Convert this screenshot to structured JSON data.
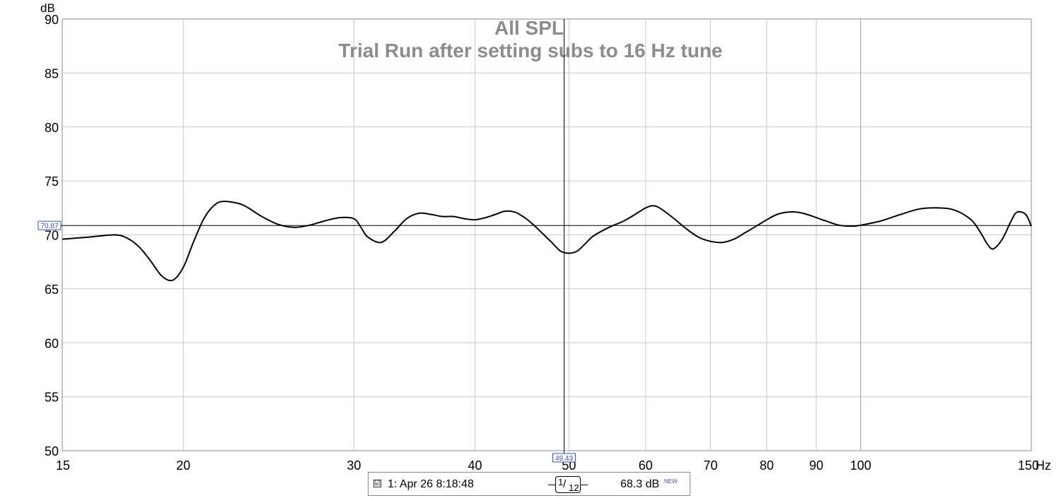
{
  "chart_data": {
    "type": "line",
    "title": "All SPL",
    "subtitle": "Trial Run after setting subs to 16 Hz tune",
    "ylabel": "dB",
    "xunit": "Hz",
    "xscale": "log",
    "xlim": [
      15,
      150
    ],
    "ylim": [
      50,
      90
    ],
    "y_ticks": [
      50,
      55,
      60,
      65,
      70,
      75,
      80,
      85,
      90
    ],
    "x_ticks": [
      15,
      20,
      30,
      40,
      50,
      60,
      70,
      80,
      90,
      100,
      150
    ],
    "x_tick_labels": [
      "15",
      "20",
      "30",
      "40",
      "50",
      "60",
      "70",
      "80",
      "90",
      "100",
      "150"
    ],
    "grid": true,
    "line_color": "#000000",
    "grid_color": "#c8c8c8",
    "marker_color": "#3a4fd0",
    "cursor": {
      "x": 49.43,
      "y": 70.87,
      "x_label": "49.43",
      "y_label": "70.87"
    },
    "series": [
      {
        "x": [
          15,
          16,
          17,
          17.5,
          18,
          18.5,
          19,
          19.5,
          20,
          20.5,
          21,
          21.5,
          22,
          23,
          24,
          25,
          26,
          27,
          28,
          29,
          30,
          30.5,
          31,
          32,
          33,
          34,
          35,
          36,
          37,
          38,
          39,
          40,
          41,
          42,
          43,
          44,
          45,
          46,
          47,
          48,
          49,
          50,
          51,
          52,
          53,
          55,
          57,
          59,
          60,
          61,
          62,
          64,
          66,
          68,
          70,
          72,
          74,
          76,
          78,
          80,
          82,
          84,
          86,
          88,
          90,
          92,
          95,
          98,
          100,
          105,
          110,
          115,
          120,
          125,
          130,
          133,
          135,
          137,
          140,
          143,
          145,
          148,
          150
        ],
        "values": [
          69.6,
          69.8,
          70.0,
          69.7,
          68.9,
          67.6,
          66.2,
          65.8,
          67.0,
          69.4,
          71.5,
          72.7,
          73.1,
          72.8,
          71.8,
          71.0,
          70.7,
          70.9,
          71.3,
          71.6,
          71.5,
          70.7,
          69.8,
          69.3,
          70.3,
          71.5,
          72.0,
          71.9,
          71.7,
          71.7,
          71.5,
          71.4,
          71.6,
          71.9,
          72.2,
          72.1,
          71.6,
          70.9,
          70.1,
          69.3,
          68.5,
          68.3,
          68.5,
          69.2,
          69.9,
          70.7,
          71.3,
          72.1,
          72.5,
          72.7,
          72.5,
          71.6,
          70.6,
          69.8,
          69.4,
          69.3,
          69.6,
          70.2,
          70.8,
          71.4,
          71.9,
          72.1,
          72.1,
          71.9,
          71.6,
          71.3,
          70.9,
          70.8,
          70.9,
          71.3,
          71.9,
          72.4,
          72.5,
          72.3,
          71.4,
          70.2,
          69.2,
          68.7,
          69.6,
          71.3,
          72.1,
          71.9,
          70.8
        ]
      }
    ]
  },
  "legend": {
    "checkbox": "☑",
    "label": "1: Apr 26 8:18:48",
    "smoothing_num": "1",
    "smoothing_den": "12",
    "value": "68.3 dB",
    "badge": "NEW"
  }
}
